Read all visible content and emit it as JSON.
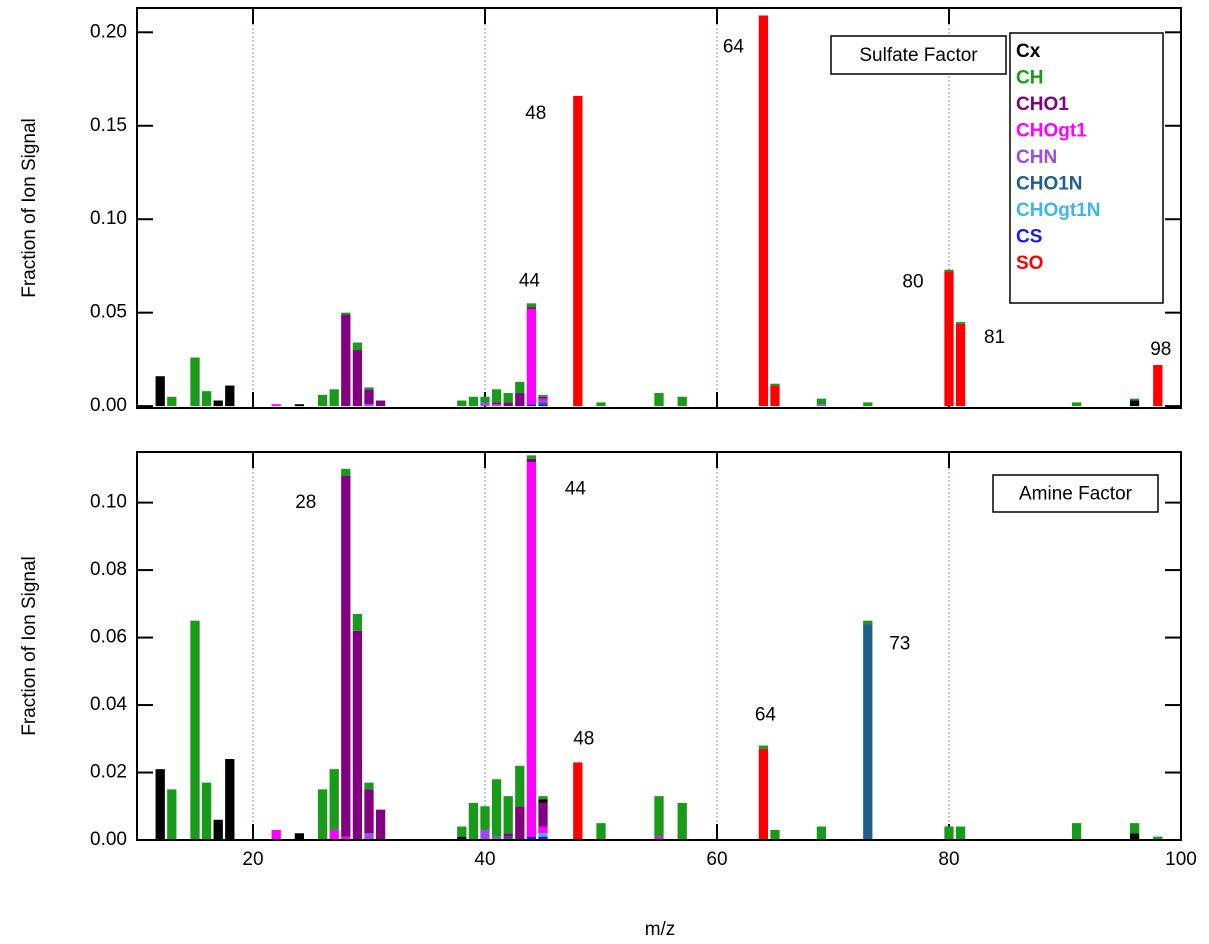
{
  "chart_data": [
    {
      "type": "stacked-bar",
      "ylabel": "Fraction of Ion Signal",
      "factor_label": "Sulfate Factor",
      "xlim": [
        10,
        100
      ],
      "xticks": [
        20,
        40,
        60,
        80,
        100
      ],
      "ylim": [
        -0.001,
        0.213
      ],
      "yticks": [
        {
          "value": 0,
          "label": "0.00"
        },
        {
          "value": 0.05,
          "label": "0.05"
        },
        {
          "value": 0.1,
          "label": "0.10"
        },
        {
          "value": 0.15,
          "label": "0.15"
        },
        {
          "value": 0.2,
          "label": "0.20"
        }
      ],
      "grid": true,
      "x": [
        12,
        13,
        15,
        16,
        17,
        18,
        22,
        24,
        26,
        27,
        28,
        29,
        30,
        31,
        38,
        39,
        40,
        41,
        42,
        43,
        44,
        45,
        48,
        50,
        55,
        57,
        64,
        65,
        69,
        73,
        80,
        81,
        91,
        96,
        98
      ],
      "series": [
        {
          "name": "Cx",
          "color": "#000000",
          "values": [
            0.016,
            0,
            0,
            0,
            0.003,
            0.011,
            0,
            0.001,
            0,
            0,
            0,
            0,
            0,
            0,
            0,
            0,
            0,
            0,
            0,
            0,
            0,
            0,
            0,
            0,
            0,
            0,
            0,
            0,
            0,
            0,
            0,
            0,
            0,
            0.003,
            0
          ]
        },
        {
          "name": "CH",
          "color": "#1a9a1a",
          "values": [
            0,
            0.005,
            0.026,
            0.008,
            0,
            0,
            0,
            0,
            0.006,
            0.009,
            0.001,
            0.004,
            0.001,
            0,
            0.003,
            0.005,
            0.003,
            0.007,
            0.005,
            0.006,
            0.002,
            0.001,
            0,
            0.002,
            0.007,
            0.005,
            0,
            0.001,
            0.003,
            0.002,
            0.001,
            0.001,
            0.002,
            0.001,
            0
          ]
        },
        {
          "name": "CHO1",
          "color": "#800080",
          "values": [
            0,
            0,
            0,
            0,
            0,
            0,
            0,
            0,
            0,
            0,
            0.049,
            0.03,
            0.008,
            0.003,
            0,
            0,
            0,
            0.001,
            0.002,
            0.007,
            0.001,
            0.001,
            0,
            0,
            0,
            0,
            0,
            0,
            0,
            0,
            0,
            0,
            0,
            0,
            0
          ]
        },
        {
          "name": "CHOgt1",
          "color": "#ff00ff",
          "values": [
            0,
            0,
            0,
            0,
            0,
            0,
            0.001,
            0,
            0,
            0,
            0,
            0,
            0,
            0,
            0,
            0,
            0,
            0,
            0,
            0,
            0.051,
            0.001,
            0,
            0,
            0,
            0,
            0,
            0,
            0,
            0,
            0,
            0,
            0,
            0,
            0
          ]
        },
        {
          "name": "CHN",
          "color": "#9b4de6",
          "values": [
            0,
            0,
            0,
            0,
            0,
            0,
            0,
            0,
            0,
            0,
            0,
            0,
            0.001,
            0,
            0,
            0,
            0.002,
            0.001,
            0,
            0,
            0,
            0.001,
            0,
            0,
            0,
            0,
            0,
            0,
            0.001,
            0,
            0,
            0,
            0,
            0,
            0
          ]
        },
        {
          "name": "CHO1N",
          "color": "#1f5f8b",
          "values": [
            0,
            0,
            0,
            0,
            0,
            0,
            0,
            0,
            0,
            0,
            0,
            0,
            0,
            0,
            0,
            0,
            0,
            0,
            0,
            0,
            0,
            0.001,
            0,
            0,
            0,
            0,
            0,
            0,
            0,
            0,
            0,
            0,
            0,
            0,
            0
          ]
        },
        {
          "name": "CHOgt1N",
          "color": "#40b4f0",
          "values": [
            0,
            0,
            0,
            0,
            0,
            0,
            0,
            0,
            0,
            0,
            0,
            0,
            0,
            0,
            0,
            0,
            0,
            0,
            0,
            0,
            0,
            0,
            0,
            0,
            0,
            0,
            0,
            0,
            0,
            0,
            0,
            0,
            0,
            0,
            0
          ]
        },
        {
          "name": "CS",
          "color": "#1a1aee",
          "values": [
            0,
            0,
            0,
            0,
            0,
            0,
            0,
            0,
            0,
            0,
            0,
            0,
            0,
            0,
            0,
            0,
            0,
            0,
            0,
            0,
            0.001,
            0.001,
            0,
            0,
            0,
            0,
            0,
            0,
            0,
            0,
            0,
            0,
            0,
            0,
            0
          ]
        },
        {
          "name": "SO",
          "color": "#ff0000",
          "values": [
            0,
            0,
            0,
            0,
            0,
            0,
            0,
            0,
            0,
            0,
            0,
            0,
            0,
            0,
            0,
            0,
            0,
            0,
            0,
            0,
            0,
            0,
            0.166,
            0,
            0,
            0,
            0.209,
            0.011,
            0,
            0,
            0.072,
            0.044,
            0,
            0,
            0.022
          ]
        }
      ],
      "annotations": [
        {
          "label": "48",
          "x": 48
        },
        {
          "label": "64",
          "x": 64
        },
        {
          "label": "44",
          "x": 44
        },
        {
          "label": "80",
          "x": 80
        },
        {
          "label": "81",
          "x": 81
        },
        {
          "label": "98",
          "x": 98
        }
      ]
    },
    {
      "type": "stacked-bar",
      "ylabel": "Fraction of Ion Signal",
      "factor_label": "Amine Factor",
      "xlabel": "m/z",
      "xlim": [
        10,
        100
      ],
      "xticks": [
        20,
        40,
        60,
        80,
        100
      ],
      "ylim": [
        0,
        0.115
      ],
      "yticks": [
        {
          "value": 0,
          "label": "0.00"
        },
        {
          "value": 0.02,
          "label": "0.02"
        },
        {
          "value": 0.04,
          "label": "0.04"
        },
        {
          "value": 0.06,
          "label": "0.06"
        },
        {
          "value": 0.08,
          "label": "0.08"
        },
        {
          "value": 0.1,
          "label": "0.10"
        }
      ],
      "grid": true,
      "x": [
        12,
        13,
        15,
        16,
        17,
        18,
        22,
        24,
        26,
        27,
        28,
        29,
        30,
        31,
        38,
        39,
        40,
        41,
        42,
        43,
        44,
        45,
        48,
        50,
        55,
        57,
        64,
        65,
        69,
        73,
        80,
        81,
        91,
        96,
        98
      ],
      "series": [
        {
          "color": "#000000",
          "values": [
            0.021,
            0,
            0,
            0,
            0.006,
            0.024,
            0,
            0.002,
            0,
            0,
            0,
            0,
            0,
            0,
            0.001,
            0,
            0,
            0,
            0,
            0,
            0,
            0.001,
            0,
            0,
            0,
            0,
            0,
            0,
            0,
            0,
            0,
            0,
            0,
            0.002,
            0
          ]
        },
        {
          "color": "#1a9a1a",
          "values": [
            0,
            0.015,
            0.065,
            0.017,
            0,
            0,
            0,
            0,
            0.015,
            0.018,
            0.002,
            0.005,
            0.002,
            0,
            0.003,
            0.011,
            0.007,
            0.017,
            0.011,
            0.012,
            0.001,
            0.001,
            0,
            0.005,
            0.012,
            0.011,
            0.001,
            0.003,
            0.004,
            0.001,
            0.004,
            0.004,
            0.005,
            0.003,
            0.001
          ]
        },
        {
          "color": "#800080",
          "values": [
            0,
            0,
            0,
            0,
            0,
            0,
            0,
            0,
            0,
            0,
            0.107,
            0.062,
            0.013,
            0.009,
            0,
            0,
            0,
            0,
            0.001,
            0.01,
            0.001,
            0.007,
            0,
            0,
            0,
            0,
            0,
            0,
            0,
            0,
            0,
            0,
            0,
            0,
            0
          ]
        },
        {
          "color": "#ff00ff",
          "values": [
            0,
            0,
            0,
            0,
            0,
            0,
            0.003,
            0,
            0,
            0.003,
            0.001,
            0,
            0,
            0,
            0,
            0,
            0,
            0,
            0,
            0,
            0.111,
            0.002,
            0,
            0,
            0.001,
            0,
            0,
            0,
            0,
            0,
            0,
            0,
            0,
            0,
            0
          ]
        },
        {
          "color": "#9b4de6",
          "values": [
            0,
            0,
            0,
            0,
            0,
            0,
            0,
            0,
            0,
            0,
            0,
            0,
            0.002,
            0,
            0,
            0,
            0.003,
            0.001,
            0,
            0,
            0,
            0,
            0,
            0,
            0,
            0,
            0,
            0,
            0,
            0,
            0,
            0,
            0,
            0,
            0
          ]
        },
        {
          "color": "#1f5f8b",
          "values": [
            0,
            0,
            0,
            0,
            0,
            0,
            0,
            0,
            0,
            0,
            0,
            0,
            0,
            0,
            0,
            0,
            0,
            0,
            0.001,
            0,
            0,
            0,
            0,
            0,
            0,
            0,
            0,
            0,
            0,
            0.064,
            0,
            0,
            0,
            0,
            0
          ]
        },
        {
          "color": "#40b4f0",
          "values": [
            0,
            0,
            0,
            0,
            0,
            0,
            0,
            0,
            0,
            0,
            0,
            0,
            0,
            0,
            0,
            0,
            0,
            0,
            0,
            0,
            0,
            0.001,
            0,
            0,
            0,
            0,
            0,
            0,
            0,
            0,
            0,
            0,
            0,
            0,
            0
          ]
        },
        {
          "color": "#1a1aee",
          "values": [
            0,
            0,
            0,
            0,
            0,
            0,
            0,
            0,
            0,
            0,
            0,
            0,
            0,
            0,
            0,
            0,
            0,
            0,
            0,
            0,
            0.001,
            0.001,
            0,
            0,
            0,
            0,
            0,
            0,
            0,
            0,
            0,
            0,
            0,
            0,
            0
          ]
        },
        {
          "color": "#ff0000",
          "values": [
            0,
            0,
            0,
            0,
            0,
            0,
            0,
            0,
            0,
            0,
            0,
            0,
            0,
            0,
            0,
            0,
            0,
            0,
            0,
            0,
            0,
            0,
            0.023,
            0,
            0,
            0,
            0.027,
            0,
            0,
            0,
            0,
            0,
            0,
            0,
            0
          ]
        }
      ],
      "annotations": [
        {
          "label": "28",
          "x": 28
        },
        {
          "label": "44",
          "x": 44
        },
        {
          "label": "48",
          "x": 48
        },
        {
          "label": "64",
          "x": 64
        },
        {
          "label": "73",
          "x": 73
        }
      ]
    }
  ]
}
